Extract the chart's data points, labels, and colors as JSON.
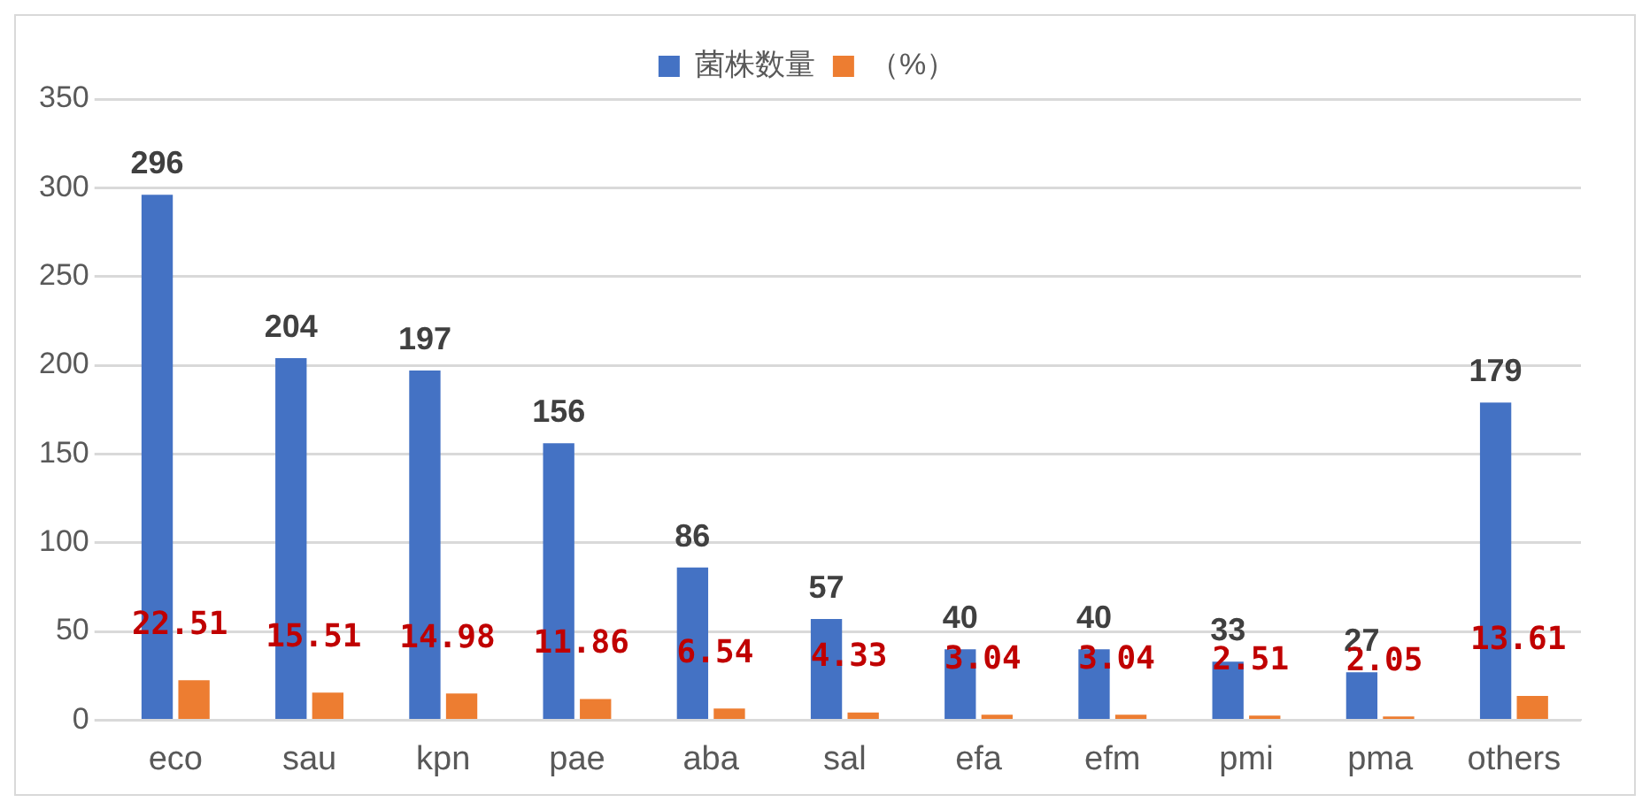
{
  "chart_data": {
    "type": "bar",
    "categories": [
      "eco",
      "sau",
      "kpn",
      "pae",
      "aba",
      "sal",
      "efa",
      "efm",
      "pmi",
      "pma",
      "others"
    ],
    "series": [
      {
        "name": "菌株数量",
        "color": "#4472c4",
        "values": [
          296,
          204,
          197,
          156,
          86,
          57,
          40,
          40,
          33,
          27,
          179
        ]
      },
      {
        "name": "（%）",
        "color": "#ed7d31",
        "values": [
          22.51,
          15.51,
          14.98,
          11.86,
          6.54,
          4.33,
          3.04,
          3.04,
          2.51,
          2.05,
          13.61
        ]
      }
    ],
    "ylim": [
      0,
      350
    ],
    "yticks": [
      0,
      50,
      100,
      150,
      200,
      250,
      300,
      350
    ],
    "grid": "y",
    "legend": "top",
    "data_labels": true
  }
}
